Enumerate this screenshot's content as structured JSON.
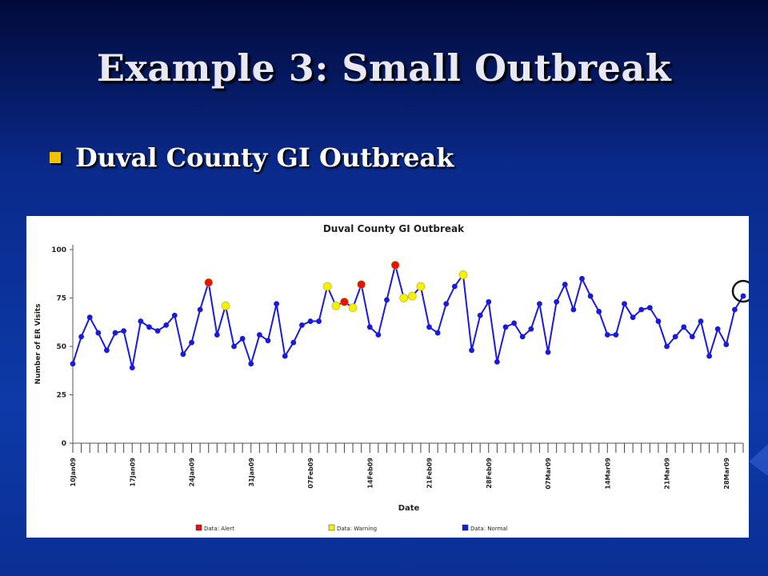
{
  "slide": {
    "title": "Example 3: Small Outbreak",
    "bullet": "Duval County GI Outbreak"
  },
  "colors": {
    "normal": "#1a1adc",
    "warning": "#f5ef10",
    "alert": "#e81010",
    "bullet": "#f2c200"
  },
  "chart_data": {
    "type": "line",
    "title": "Duval County GI Outbreak",
    "xlabel": "Date",
    "ylabel": "Number of ER Visits",
    "ylim": [
      0,
      100
    ],
    "yticks": [
      0,
      25,
      50,
      75,
      100
    ],
    "x_tick_labels": [
      {
        "index": 0,
        "label": "10Jan09"
      },
      {
        "index": 7,
        "label": "17Jan09"
      },
      {
        "index": 14,
        "label": "24Jan09"
      },
      {
        "index": 21,
        "label": "31Jan09"
      },
      {
        "index": 28,
        "label": "07Feb09"
      },
      {
        "index": 35,
        "label": "14Feb09"
      },
      {
        "index": 42,
        "label": "21Feb09"
      },
      {
        "index": 49,
        "label": "28Feb09"
      },
      {
        "index": 56,
        "label": "07Mar09"
      },
      {
        "index": 63,
        "label": "14Mar09"
      },
      {
        "index": 70,
        "label": "21Mar09"
      },
      {
        "index": 77,
        "label": "28Mar09"
      }
    ],
    "start_date": "10Jan09",
    "values": [
      41,
      55,
      65,
      57,
      48,
      57,
      58,
      39,
      63,
      60,
      58,
      61,
      66,
      46,
      52,
      69,
      83,
      56,
      71,
      50,
      54,
      41,
      56,
      53,
      72,
      45,
      52,
      61,
      63,
      63,
      81,
      71,
      73,
      70,
      82,
      60,
      56,
      74,
      92,
      75,
      76,
      81,
      60,
      57,
      72,
      81,
      87,
      48,
      66,
      73,
      42,
      60,
      62,
      55,
      59,
      72,
      47,
      73,
      82,
      69,
      85,
      76,
      68,
      56,
      56,
      72,
      65,
      69,
      70,
      63,
      50,
      55,
      60,
      55,
      63,
      45,
      59,
      51,
      69,
      76
    ],
    "status": [
      "normal",
      "normal",
      "normal",
      "normal",
      "normal",
      "normal",
      "normal",
      "normal",
      "normal",
      "normal",
      "normal",
      "normal",
      "normal",
      "normal",
      "normal",
      "normal",
      "alert",
      "normal",
      "warning",
      "normal",
      "normal",
      "normal",
      "normal",
      "normal",
      "normal",
      "normal",
      "normal",
      "normal",
      "normal",
      "normal",
      "warning",
      "warning",
      "alert",
      "warning",
      "alert",
      "normal",
      "normal",
      "normal",
      "alert",
      "warning",
      "warning",
      "warning",
      "normal",
      "normal",
      "normal",
      "normal",
      "warning",
      "normal",
      "normal",
      "normal",
      "normal",
      "normal",
      "normal",
      "normal",
      "normal",
      "normal",
      "normal",
      "normal",
      "normal",
      "normal",
      "normal",
      "normal",
      "normal",
      "normal",
      "normal",
      "normal",
      "normal",
      "normal",
      "normal",
      "normal",
      "normal",
      "normal",
      "normal",
      "normal",
      "normal",
      "normal",
      "normal",
      "normal",
      "normal",
      "normal"
    ],
    "legend": [
      {
        "key": "alert",
        "label": "Data: Alert"
      },
      {
        "key": "warning",
        "label": "Data: Warning"
      },
      {
        "key": "normal",
        "label": "Data: Normal"
      }
    ],
    "legend_position": "bottom",
    "grid": false,
    "highlight_index": 79
  }
}
